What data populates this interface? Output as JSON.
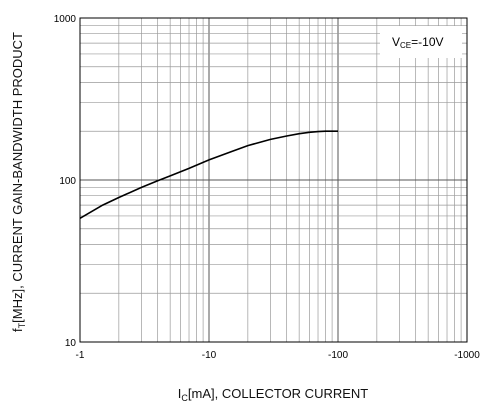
{
  "chart_data": {
    "type": "line",
    "xlabel": {
      "main": "I",
      "sub": "C",
      "rest": "[mA], COLLECTOR CURRENT"
    },
    "ylabel": {
      "main": "f",
      "sub": "T",
      "rest": "[MHz], CURRENT GAIN-BANDWIDTH PRODUCT"
    },
    "annotation": {
      "main": "V",
      "sub": "CE",
      "rest": "=-10V"
    },
    "x_scale": "log",
    "y_scale": "log",
    "xlim": [
      -1,
      -1000
    ],
    "ylim": [
      10,
      1000
    ],
    "x_ticks": [
      -1,
      -10,
      -100,
      -1000
    ],
    "x_tick_labels": [
      "-1",
      "-10",
      "-100",
      "-1000"
    ],
    "y_ticks": [
      10,
      100,
      1000
    ],
    "y_tick_labels": [
      "10",
      "100",
      "1000"
    ],
    "grid": true,
    "series": [
      {
        "x": [
          -1,
          -1.5,
          -2,
          -3,
          -4,
          -5,
          -7,
          -10,
          -15,
          -20,
          -30,
          -40,
          -50,
          -60,
          -70,
          -80,
          -100
        ],
        "y": [
          58,
          70,
          78,
          90,
          99,
          106,
          118,
          133,
          150,
          163,
          178,
          187,
          193,
          197,
          199,
          200,
          200
        ]
      }
    ],
    "colors": {
      "line": "#000000",
      "grid": "#9a9a9a",
      "frame": "#000000"
    }
  }
}
